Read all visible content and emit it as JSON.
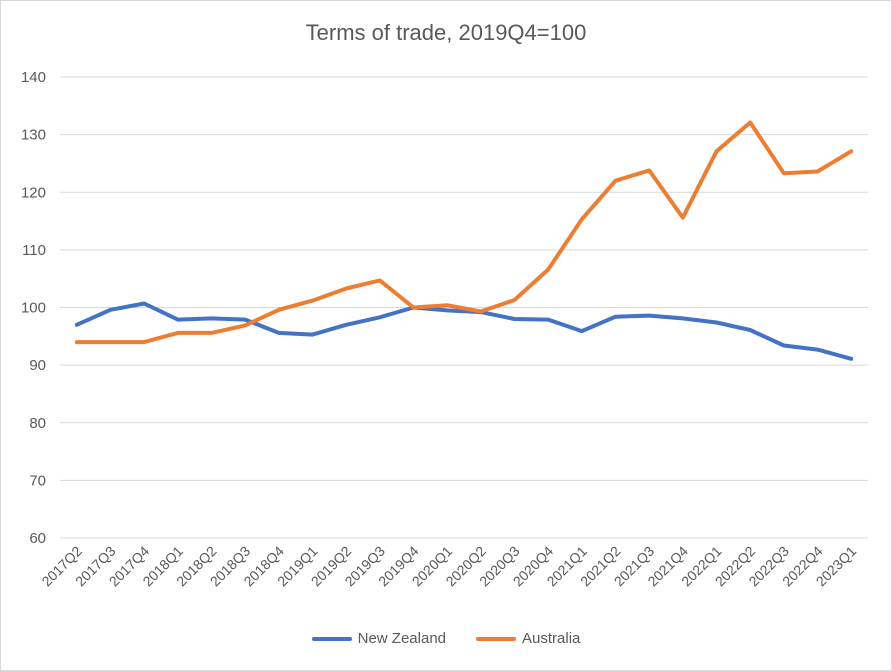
{
  "chart_data": {
    "type": "line",
    "title": "Terms of trade, 2019Q4=100",
    "xlabel": "",
    "ylabel": "",
    "ylim": [
      60,
      140
    ],
    "yticks": [
      "60",
      "70",
      "80",
      "90",
      "100",
      "110",
      "120",
      "130",
      "140"
    ],
    "grid": true,
    "legend_position": "bottom",
    "categories": [
      "2017Q2",
      "2017Q3",
      "2017Q4",
      "2018Q1",
      "2018Q2",
      "2018Q3",
      "2018Q4",
      "2019Q1",
      "2019Q2",
      "2019Q3",
      "2019Q4",
      "2020Q1",
      "2020Q2",
      "2020Q3",
      "2020Q4",
      "2021Q1",
      "2021Q2",
      "2021Q3",
      "2021Q4",
      "2022Q1",
      "2022Q2",
      "2022Q3",
      "2022Q4",
      "2023Q1"
    ],
    "series": [
      {
        "name": "New Zealand",
        "color": "#4472c4",
        "values": [
          97.0,
          99.6,
          100.7,
          97.9,
          98.1,
          97.9,
          95.6,
          95.3,
          97.0,
          98.3,
          100.0,
          99.5,
          99.2,
          98.0,
          97.9,
          95.9,
          98.4,
          98.6,
          98.1,
          97.4,
          96.1,
          93.4,
          92.7,
          91.1
        ]
      },
      {
        "name": "Australia",
        "color": "#ed7d31",
        "values": [
          94.0,
          94.0,
          94.0,
          95.6,
          95.6,
          96.9,
          99.6,
          101.2,
          103.3,
          104.7,
          100.0,
          100.4,
          99.3,
          101.3,
          106.6,
          115.3,
          122.0,
          123.8,
          115.6,
          127.1,
          132.1,
          123.3,
          123.6,
          127.1
        ]
      }
    ]
  }
}
